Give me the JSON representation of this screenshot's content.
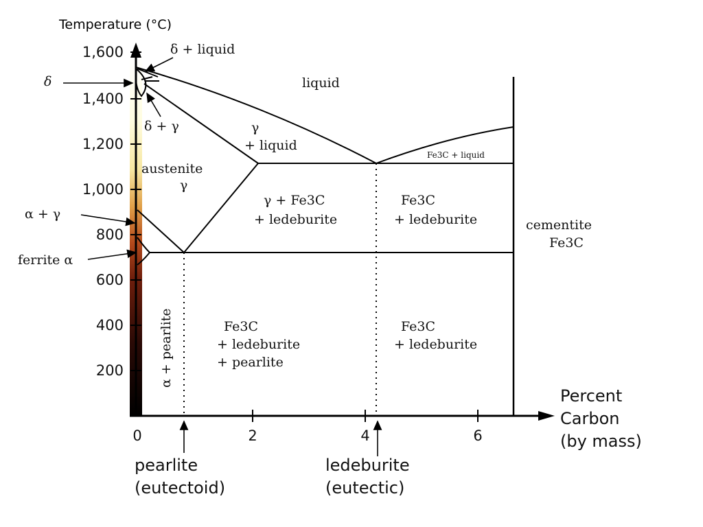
{
  "diagram": {
    "y_axis_title": "Temperature (°C)",
    "x_axis_title": [
      "Percent",
      "Carbon",
      "(by mass)"
    ],
    "y_ticks": [
      "1,600",
      "1,400",
      "1,200",
      "1,000",
      "800",
      "600",
      "400",
      "200"
    ],
    "x_ticks": [
      "0",
      "2",
      "4",
      "6"
    ],
    "regions": {
      "liquid": "liquid",
      "delta_liquid": "δ + liquid",
      "delta": "δ",
      "delta_gamma": "δ + γ",
      "gamma_liquid_1": "γ",
      "gamma_liquid_2": "+ liquid",
      "austenite_1": "austenite",
      "austenite_2": "γ",
      "alpha_gamma": "α + γ",
      "ferrite": "ferrite α",
      "gamma_fe3c_1": "γ + Fe3C",
      "gamma_fe3c_2": "+ ledeburite",
      "fe3c_upper_1": "Fe3C",
      "fe3c_upper_2": "+ ledeburite",
      "fe3c_liquid": "Fe3C + liquid",
      "cementite_1": "cementite",
      "cementite_2": "Fe3C",
      "alpha_pearlite": "α + pearlite",
      "fe3c_lower_1": "Fe3C",
      "fe3c_lower_2": "+ ledeburite",
      "fe3c_lower_3": "+ pearlite",
      "fe3c_right_1": "Fe3C",
      "fe3c_right_2": "+ ledeburite"
    },
    "annotations": {
      "pearlite_1": "pearlite",
      "pearlite_2": "(eutectoid)",
      "ledeburite_1": "ledeburite",
      "ledeburite_2": "(eutectic)"
    }
  }
}
